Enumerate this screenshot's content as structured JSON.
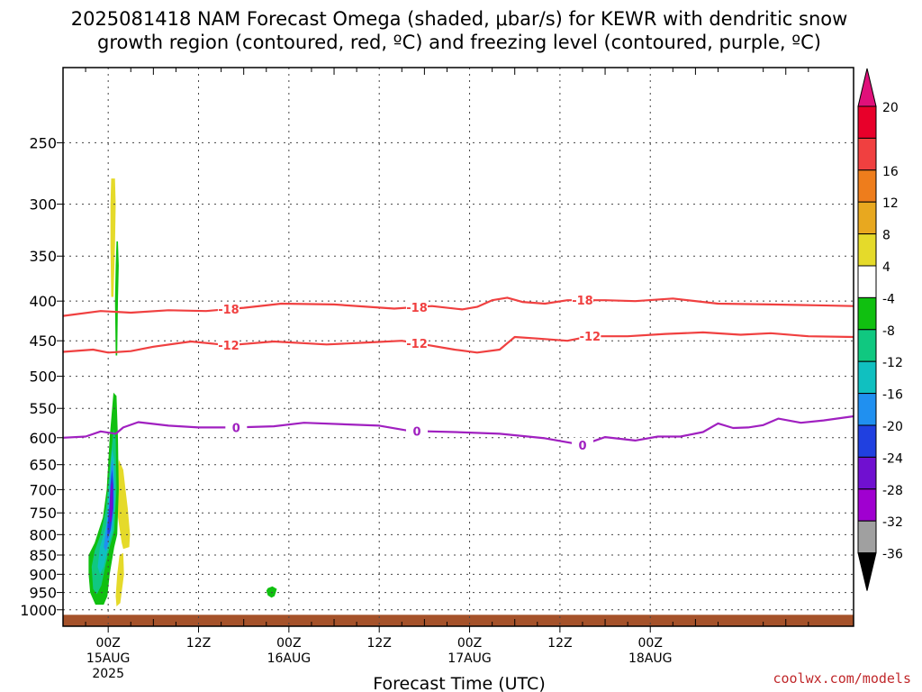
{
  "chart_data": {
    "type": "heatmap",
    "title_line1": "2025081418 NAM Forecast Omega (shaded, μbar/s) for KEWR with dendritic snow",
    "title_line2": "growth region (contoured, red, ºC) and freezing level (contoured, purple, ºC)",
    "xlabel": "Forecast Time (UTC)",
    "x_range_hours": [
      -6,
      99
    ],
    "x_ticks": [
      {
        "hour": 0,
        "label": "00Z",
        "sub1": "15AUG",
        "sub2": "2025"
      },
      {
        "hour": 12,
        "label": "12Z",
        "sub1": "",
        "sub2": ""
      },
      {
        "hour": 24,
        "label": "00Z",
        "sub1": "16AUG",
        "sub2": ""
      },
      {
        "hour": 36,
        "label": "12Z",
        "sub1": "",
        "sub2": ""
      },
      {
        "hour": 48,
        "label": "00Z",
        "sub1": "17AUG",
        "sub2": ""
      },
      {
        "hour": 60,
        "label": "12Z",
        "sub1": "",
        "sub2": ""
      },
      {
        "hour": 72,
        "label": "00Z",
        "sub1": "18AUG",
        "sub2": ""
      }
    ],
    "y_range_hpa": [
      200,
      1050
    ],
    "y_scale": "log-pressure (inverted)",
    "y_ticks": [
      250,
      300,
      350,
      400,
      450,
      500,
      550,
      600,
      650,
      700,
      750,
      800,
      850,
      900,
      950,
      1000
    ],
    "grid": true,
    "colorbar": {
      "labels": [
        "20",
        "16",
        "12",
        "8",
        "4",
        "-4",
        "-8",
        "-12",
        "-16",
        "-20",
        "-24",
        "-28",
        "-32",
        "-36"
      ],
      "colors": [
        "#e8002a",
        "#f04040",
        "#ee7d1c",
        "#e8a81f",
        "#e5da2a",
        "#ffffff",
        "#10c010",
        "#10c880",
        "#10c0c0",
        "#2090f0",
        "#2040e0",
        "#7010d0",
        "#a000d0",
        "#a0a0a0"
      ],
      "top_arrow_color": "#e0107a",
      "bottom_arrow_color": "#000000"
    },
    "contours": [
      {
        "name": "-18",
        "color": "#f04040",
        "points": [
          [
            -6,
            418
          ],
          [
            -1,
            412
          ],
          [
            3,
            414
          ],
          [
            8,
            411
          ],
          [
            13,
            412
          ],
          [
            18,
            408
          ],
          [
            23,
            403
          ],
          [
            30,
            404
          ],
          [
            38,
            409
          ],
          [
            43,
            406
          ],
          [
            47,
            410
          ],
          [
            49,
            407
          ],
          [
            51,
            399
          ],
          [
            53,
            396
          ],
          [
            55,
            401
          ],
          [
            58,
            403
          ],
          [
            61,
            399
          ],
          [
            66,
            399
          ],
          [
            70,
            400
          ],
          [
            75,
            397
          ],
          [
            81,
            403
          ],
          [
            88,
            404
          ],
          [
            94,
            405
          ],
          [
            99,
            406
          ]
        ],
        "label_hours": [
          16,
          41,
          63
        ]
      },
      {
        "name": "-12",
        "color": "#f04040",
        "points": [
          [
            -6,
            465
          ],
          [
            -2,
            462
          ],
          [
            0,
            466
          ],
          [
            3,
            464
          ],
          [
            6,
            458
          ],
          [
            11,
            451
          ],
          [
            16,
            456
          ],
          [
            22,
            451
          ],
          [
            29,
            455
          ],
          [
            35,
            452
          ],
          [
            39,
            450
          ],
          [
            42,
            455
          ],
          [
            46,
            462
          ],
          [
            49,
            466
          ],
          [
            52,
            462
          ],
          [
            54,
            445
          ],
          [
            57,
            447
          ],
          [
            61,
            450
          ],
          [
            64,
            444
          ],
          [
            69,
            444
          ],
          [
            74,
            441
          ],
          [
            79,
            439
          ],
          [
            84,
            442
          ],
          [
            88,
            440
          ],
          [
            93,
            444
          ],
          [
            99,
            445
          ]
        ],
        "label_hours": [
          16,
          41,
          64
        ]
      },
      {
        "name": "0",
        "color": "#a020c0",
        "points": [
          [
            -6,
            600
          ],
          [
            -3,
            598
          ],
          [
            -1,
            589
          ],
          [
            1,
            593
          ],
          [
            2,
            582
          ],
          [
            4,
            573
          ],
          [
            8,
            579
          ],
          [
            12,
            582
          ],
          [
            17,
            582
          ],
          [
            22,
            580
          ],
          [
            26,
            574
          ],
          [
            32,
            577
          ],
          [
            36,
            579
          ],
          [
            40,
            588
          ],
          [
            46,
            590
          ],
          [
            52,
            593
          ],
          [
            58,
            601
          ],
          [
            63,
            613
          ],
          [
            66,
            599
          ],
          [
            70,
            605
          ],
          [
            73,
            598
          ],
          [
            76,
            598
          ],
          [
            79,
            590
          ],
          [
            81,
            575
          ],
          [
            83,
            583
          ],
          [
            85,
            582
          ],
          [
            87,
            578
          ],
          [
            89,
            567
          ],
          [
            92,
            574
          ],
          [
            95,
            570
          ],
          [
            99,
            563
          ]
        ],
        "label_hours": [
          17,
          41,
          63
        ]
      }
    ],
    "shaded_regions": [
      {
        "omega": "4",
        "color": "#e5da2a",
        "points": [
          [
            0.4,
            278
          ],
          [
            0.9,
            278
          ],
          [
            1.0,
            300
          ],
          [
            0.9,
            340
          ],
          [
            0.7,
            395
          ],
          [
            0.4,
            395
          ],
          [
            0.3,
            340
          ],
          [
            0.3,
            300
          ]
        ]
      },
      {
        "omega": "-4",
        "color": "#10c010",
        "points": [
          [
            1.1,
            335
          ],
          [
            1.3,
            335
          ],
          [
            1.4,
            360
          ],
          [
            1.3,
            400
          ],
          [
            1.2,
            470
          ],
          [
            1.0,
            470
          ],
          [
            0.9,
            400
          ],
          [
            1.0,
            360
          ]
        ]
      },
      {
        "omega": "4",
        "color": "#e5da2a",
        "points": [
          [
            1.4,
            640
          ],
          [
            2.0,
            660
          ],
          [
            2.3,
            700
          ],
          [
            2.6,
            740
          ],
          [
            2.9,
            800
          ],
          [
            2.8,
            830
          ],
          [
            2.0,
            835
          ],
          [
            1.8,
            820
          ],
          [
            1.3,
            760
          ],
          [
            1.2,
            690
          ]
        ]
      },
      {
        "omega": "4",
        "color": "#e5da2a",
        "points": [
          [
            1.5,
            850
          ],
          [
            2.0,
            845
          ],
          [
            2.1,
            900
          ],
          [
            1.6,
            980
          ],
          [
            1.1,
            990
          ],
          [
            1.0,
            960
          ],
          [
            1.2,
            900
          ]
        ]
      },
      {
        "omega": "-4",
        "color": "#10c010",
        "points": [
          [
            0.7,
            525
          ],
          [
            1.1,
            530
          ],
          [
            1.3,
            600
          ],
          [
            1.4,
            700
          ],
          [
            1.2,
            800
          ],
          [
            0.8,
            830
          ],
          [
            0.2,
            900
          ],
          [
            -0.1,
            960
          ],
          [
            -0.6,
            985
          ],
          [
            -1.7,
            985
          ],
          [
            -2.4,
            950
          ],
          [
            -2.6,
            900
          ],
          [
            -2.6,
            850
          ],
          [
            -1.8,
            820
          ],
          [
            -0.7,
            760
          ],
          [
            -0.2,
            700
          ],
          [
            0.2,
            600
          ]
        ]
      },
      {
        "omega": "-8",
        "color": "#10c880",
        "points": [
          [
            0.7,
            585
          ],
          [
            1.0,
            600
          ],
          [
            1.1,
            700
          ],
          [
            0.8,
            790
          ],
          [
            0.2,
            830
          ],
          [
            -0.4,
            880
          ],
          [
            -0.9,
            930
          ],
          [
            -1.5,
            955
          ],
          [
            -2.0,
            940
          ],
          [
            -2.2,
            880
          ],
          [
            -1.8,
            840
          ],
          [
            -1.0,
            800
          ],
          [
            -0.3,
            740
          ],
          [
            0.2,
            660
          ]
        ]
      },
      {
        "omega": "-12",
        "color": "#10c0c0",
        "points": [
          [
            0.5,
            620
          ],
          [
            0.8,
            640
          ],
          [
            0.9,
            720
          ],
          [
            0.6,
            790
          ],
          [
            0.0,
            830
          ],
          [
            -0.6,
            880
          ],
          [
            -1.1,
            900
          ],
          [
            -1.4,
            880
          ],
          [
            -1.1,
            830
          ],
          [
            -0.3,
            780
          ],
          [
            0.0,
            720
          ],
          [
            0.3,
            660
          ]
        ]
      },
      {
        "omega": "-16",
        "color": "#2090f0",
        "points": [
          [
            0.5,
            640
          ],
          [
            0.7,
            660
          ],
          [
            0.8,
            720
          ],
          [
            0.5,
            780
          ],
          [
            0.0,
            820
          ],
          [
            -0.3,
            840
          ],
          [
            -0.6,
            830
          ],
          [
            -0.3,
            790
          ],
          [
            0.1,
            730
          ],
          [
            0.3,
            670
          ]
        ]
      },
      {
        "omega": "-20",
        "color": "#2040e0",
        "points": [
          [
            0.5,
            660
          ],
          [
            0.7,
            690
          ],
          [
            0.7,
            740
          ],
          [
            0.3,
            790
          ],
          [
            -0.1,
            810
          ],
          [
            -0.1,
            780
          ],
          [
            0.2,
            730
          ],
          [
            0.3,
            690
          ]
        ]
      },
      {
        "omega": "-24",
        "color": "#7010d0",
        "points": [
          [
            0.5,
            680
          ],
          [
            0.6,
            700
          ],
          [
            0.6,
            740
          ],
          [
            0.4,
            770
          ],
          [
            0.2,
            770
          ],
          [
            0.2,
            730
          ],
          [
            0.3,
            700
          ]
        ]
      },
      {
        "omega": "-4",
        "color": "#10c010",
        "points": [
          [
            21.2,
            938
          ],
          [
            21.8,
            933
          ],
          [
            22.4,
            940
          ],
          [
            22.1,
            960
          ],
          [
            21.7,
            965
          ],
          [
            21.2,
            958
          ],
          [
            21.0,
            945
          ]
        ]
      }
    ],
    "ground": {
      "color": "#a5522a",
      "top_hpa": 1015
    }
  },
  "credit": "coolwx.com/models"
}
